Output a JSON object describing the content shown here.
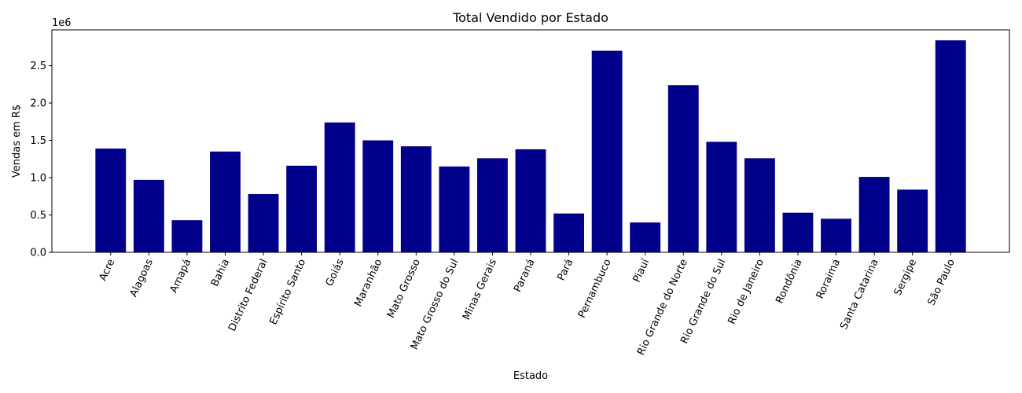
{
  "chart_data": {
    "type": "bar",
    "title": "Total Vendido por Estado",
    "xlabel": "Estado",
    "ylabel": "Vendas em R$",
    "offset_text": "1e6",
    "categories": [
      "Acre",
      "Alagoas",
      "Amapá",
      "Bahia",
      "Distrito Federal",
      "Espírito Santo",
      "Goiás",
      "Maranhão",
      "Mato Grosso",
      "Mato Grosso do Sul",
      "Minas Gerais",
      "Paraná",
      "Pará",
      "Pernambuco",
      "Piauí",
      "Rio Grande do Norte",
      "Rio Grande do Sul",
      "Rio de Janeiro",
      "Rondônia",
      "Roraima",
      "Santa Catarina",
      "Sergipe",
      "São Paulo"
    ],
    "values": [
      1390000,
      970000,
      430000,
      1350000,
      780000,
      1160000,
      1740000,
      1500000,
      1420000,
      1150000,
      1260000,
      1380000,
      520000,
      2700000,
      400000,
      2240000,
      1480000,
      1260000,
      530000,
      450000,
      1010000,
      840000,
      2840000
    ],
    "yticks": [
      0,
      500000,
      1000000,
      1500000,
      2000000,
      2500000
    ],
    "ytick_labels": [
      "0.0",
      "0.5",
      "1.0",
      "1.5",
      "2.0",
      "2.5"
    ],
    "ylim": [
      0,
      2980000
    ],
    "bar_color": "#00008b",
    "grid": false,
    "x_tick_rotation_deg": -65
  }
}
